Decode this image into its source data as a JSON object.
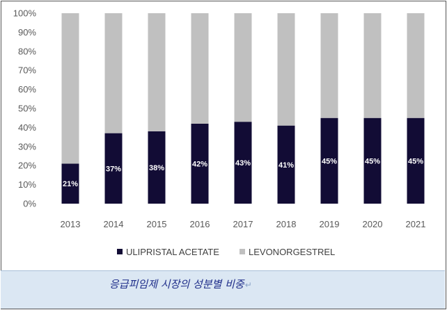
{
  "chart_data": {
    "type": "bar",
    "stacked": true,
    "categories": [
      "2013",
      "2014",
      "2015",
      "2016",
      "2017",
      "2018",
      "2019",
      "2020",
      "2021"
    ],
    "series": [
      {
        "name": "ULIPRISTAL ACETATE",
        "color": "#120c35",
        "values": [
          21,
          37,
          38,
          42,
          43,
          41,
          45,
          45,
          45
        ],
        "labels": [
          "21%",
          "37%",
          "38%",
          "42%",
          "43%",
          "41%",
          "45%",
          "45%",
          "45%"
        ]
      },
      {
        "name": "LEVONORGESTREL",
        "color": "#c0c0c0",
        "values": [
          79,
          63,
          62,
          58,
          57,
          59,
          55,
          55,
          55
        ]
      }
    ],
    "ylim": [
      0,
      100
    ],
    "yticks": [
      "0%",
      "10%",
      "20%",
      "30%",
      "40%",
      "50%",
      "60%",
      "70%",
      "80%",
      "90%",
      "100%"
    ],
    "grid": false,
    "legend": "bottom"
  },
  "caption": {
    "text": "응급피임제 시장의 성분별 비중",
    "mark": "↵"
  }
}
